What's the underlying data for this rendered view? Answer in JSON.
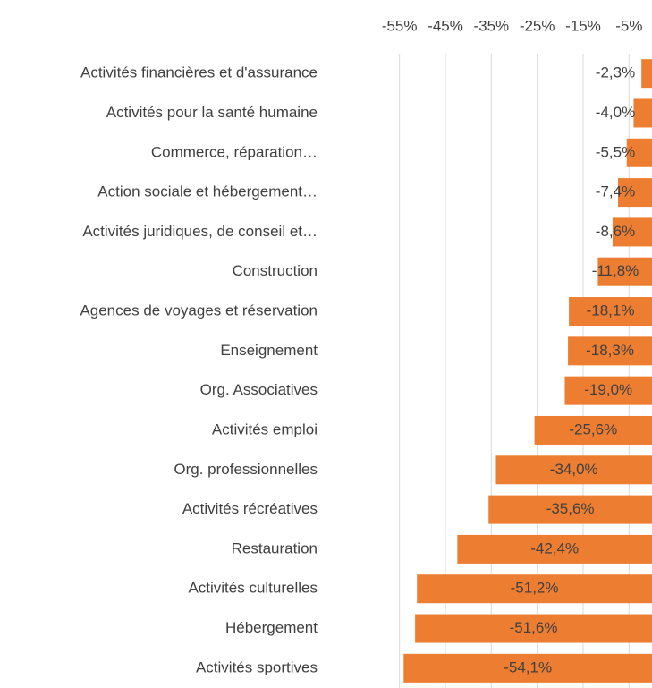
{
  "chart_data": {
    "type": "bar",
    "orientation": "horizontal",
    "color": "#ed7d31",
    "grid": true,
    "categories": [
      "Activités financières et d'assurance",
      "Activités pour la santé humaine",
      "Commerce, réparation…",
      "Action sociale et hébergement…",
      "Activités juridiques, de conseil et…",
      "Construction",
      "Agences de voyages et réservation",
      "Enseignement",
      "Org. Associatives",
      "Activités emploi",
      "Org. professionnelles",
      "Activités récréatives",
      "Restauration",
      "Activités culturelles",
      "Hébergement",
      "Activités sportives"
    ],
    "values": [
      -2.3,
      -4.0,
      -5.5,
      -7.4,
      -8.6,
      -11.8,
      -18.1,
      -18.3,
      -19.0,
      -25.6,
      -34.0,
      -35.6,
      -42.4,
      -51.2,
      -51.6,
      -54.1
    ],
    "value_labels": [
      "-2,3%",
      "-4,0%",
      "-5,5%",
      "-7,4%",
      "-8,6%",
      "-11,8%",
      "-18,1%",
      "-18,3%",
      "-19,0%",
      "-25,6%",
      "-34,0%",
      "-35,6%",
      "-42,4%",
      "-51,2%",
      "-51,6%",
      "-54,1%"
    ],
    "xlim": [
      -60,
      0
    ],
    "xticks": [
      {
        "value": -55,
        "label": "-55%"
      },
      {
        "value": -45,
        "label": "-45%"
      },
      {
        "value": -35,
        "label": "-35%"
      },
      {
        "value": -25,
        "label": "-25%"
      },
      {
        "value": -15,
        "label": "-15%"
      },
      {
        "value": -5,
        "label": "-5%"
      }
    ]
  }
}
